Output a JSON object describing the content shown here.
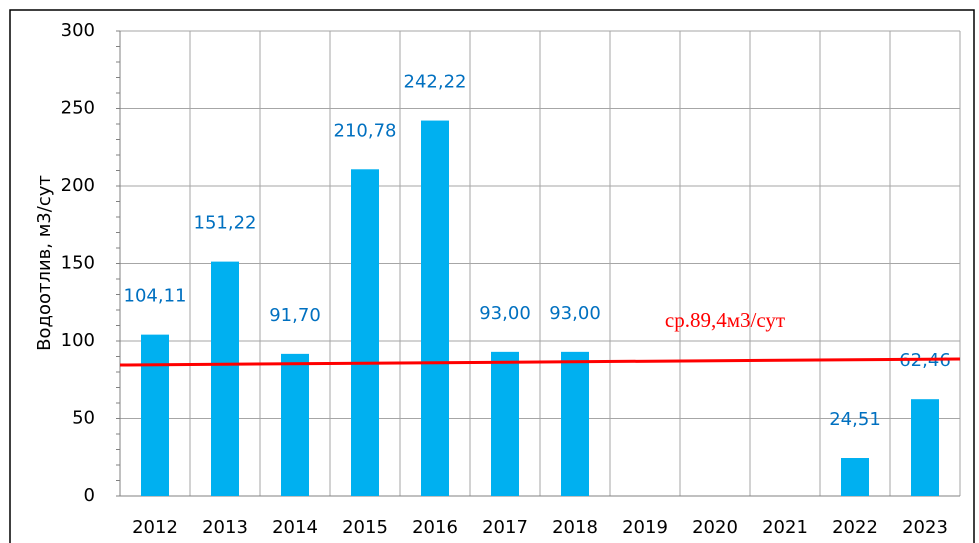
{
  "chart_data": {
    "type": "bar",
    "y_label": "Водоотлив, м3/сут",
    "categories": [
      "2012",
      "2013",
      "2014",
      "2015",
      "2016",
      "2017",
      "2018",
      "2019",
      "2020",
      "2021",
      "2022",
      "2023"
    ],
    "values": [
      104.11,
      151.22,
      91.7,
      210.78,
      242.22,
      93.0,
      93.0,
      null,
      null,
      null,
      24.51,
      62.46
    ],
    "value_labels": [
      "104,11",
      "151,22",
      "91,70",
      "210,78",
      "242,22",
      "93,00",
      "93,00",
      null,
      null,
      null,
      "24,51",
      "62,46"
    ],
    "color": "#00b0f0",
    "label_color": "#0070c0",
    "ylim": [
      0,
      300
    ],
    "yticks": [
      0,
      50,
      100,
      150,
      200,
      250,
      300
    ],
    "grid": true,
    "average_line": {
      "label": "ср.89,4м3/сут",
      "values": [
        84.5,
        88.4
      ],
      "color": "#ff0000"
    }
  }
}
